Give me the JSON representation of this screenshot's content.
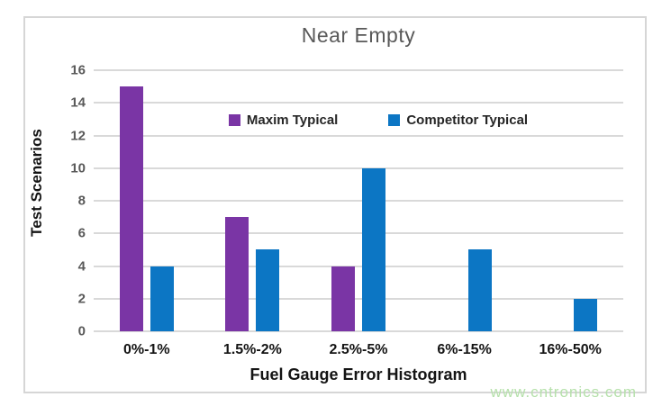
{
  "watermark": "www.cntronics.com",
  "colors": {
    "maxim_purple": "#7a35a5",
    "competitor_blue": "#0c76c4",
    "gridline": "#d9d9d9",
    "title_gray": "#595959",
    "watermark_green": "#b6e1ab"
  },
  "chart_data": {
    "type": "bar",
    "title": "Near Empty",
    "xlabel": "Fuel Gauge Error Histogram",
    "ylabel": "Test Scenarios",
    "categories": [
      "0%-1%",
      "1.5%-2%",
      "2.5%-5%",
      "6%-15%",
      "16%-50%"
    ],
    "series": [
      {
        "name": "Maxim Typical",
        "color": "#7a35a5",
        "values": [
          15,
          7,
          4,
          0,
          0
        ]
      },
      {
        "name": "Competitor Typical",
        "color": "#0c76c4",
        "values": [
          4,
          5,
          10,
          5,
          2
        ]
      }
    ],
    "ylim": [
      0,
      16
    ],
    "ytick_step": 2,
    "grid": true,
    "legend_position": "top-inside"
  }
}
